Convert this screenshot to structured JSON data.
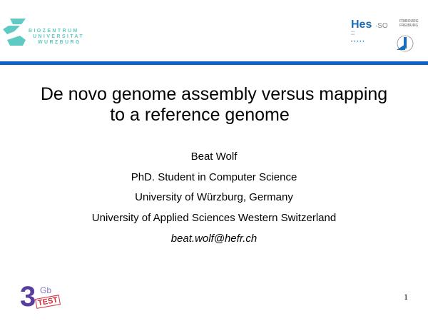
{
  "logos": {
    "biozentrum": [
      "BIOZENTRUM",
      "UNIVERSITAT",
      "WURZBURG"
    ],
    "hes_so": {
      "hes": "Hes",
      "so": "·SO",
      "city": [
        "FRIBOURG",
        "FREIBURG"
      ]
    },
    "gb3": {
      "number": "3",
      "unit": "Gb",
      "tag": "TEST"
    }
  },
  "slide": {
    "title_lines": [
      "De novo genome assembly versus mapping",
      "to a reference genome"
    ],
    "author": "Beat Wolf",
    "position": "PhD. Student in Computer Science",
    "affiliation1": "University of Würzburg, Germany",
    "affiliation2": "University of Applied Sciences Western Switzerland",
    "email": "beat.wolf@hefr.ch",
    "page_number": "1"
  },
  "colors": {
    "accent_bar": "#0b62c9",
    "biozentrum": "#5fcac4",
    "hes": "#1a6fb8"
  }
}
